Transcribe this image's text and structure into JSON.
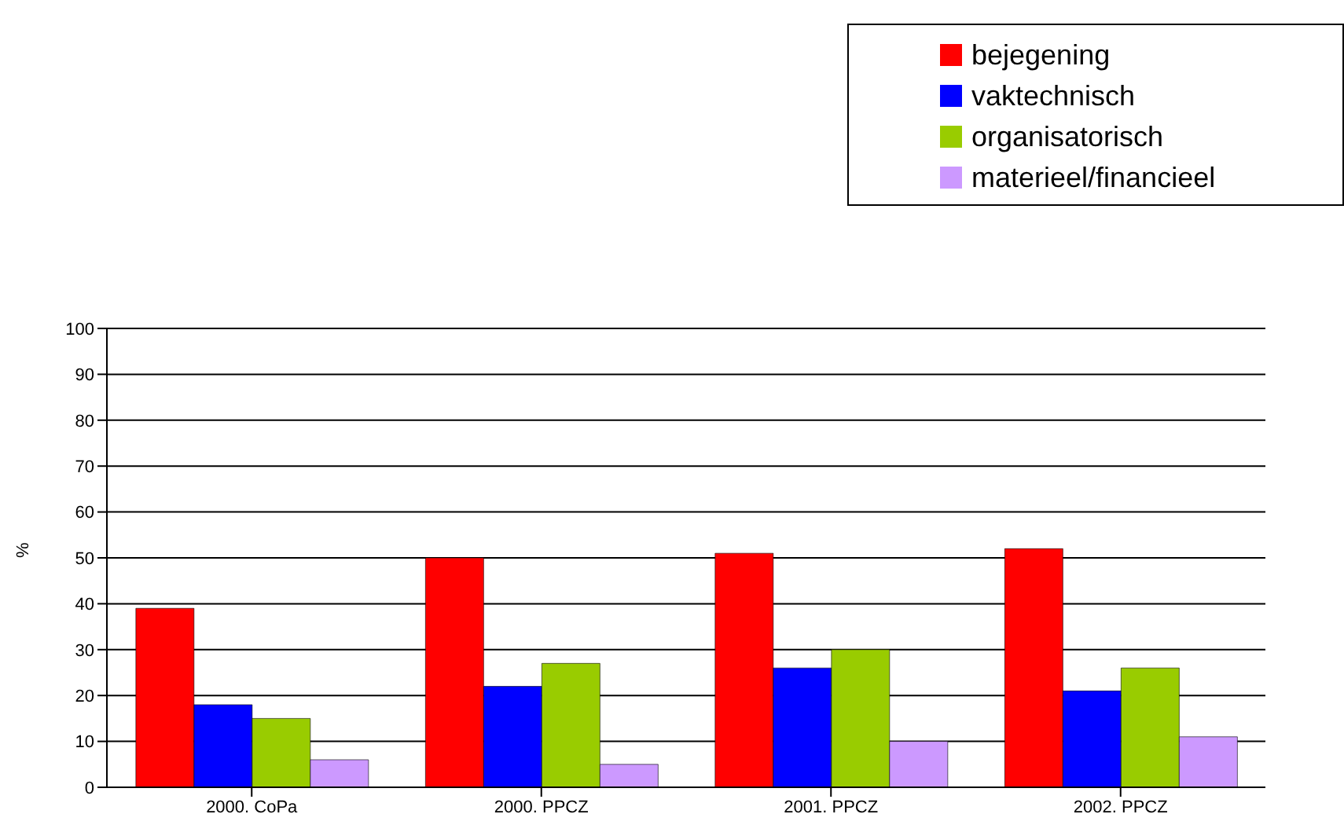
{
  "chart_data": {
    "type": "bar",
    "ylabel": "%",
    "categories": [
      "2000. CoPa",
      "2000. PPCZ",
      "2001. PPCZ",
      "2002. PPCZ"
    ],
    "series": [
      {
        "name": "bejegening",
        "color": "#ff0000",
        "values": [
          39,
          50,
          51,
          52
        ]
      },
      {
        "name": "vaktechnisch",
        "color": "#0000ff",
        "values": [
          18,
          22,
          26,
          21
        ]
      },
      {
        "name": "organisatorisch",
        "color": "#99cc00",
        "values": [
          15,
          27,
          30,
          26
        ]
      },
      {
        "name": "materieel/financieel",
        "color": "#cc99ff",
        "values": [
          6,
          5,
          10,
          11
        ]
      }
    ],
    "ylim": [
      0,
      100
    ],
    "yticks": [
      0,
      10,
      20,
      30,
      40,
      50,
      60,
      70,
      80,
      90,
      100
    ],
    "grid": "y",
    "legend": "top right"
  }
}
